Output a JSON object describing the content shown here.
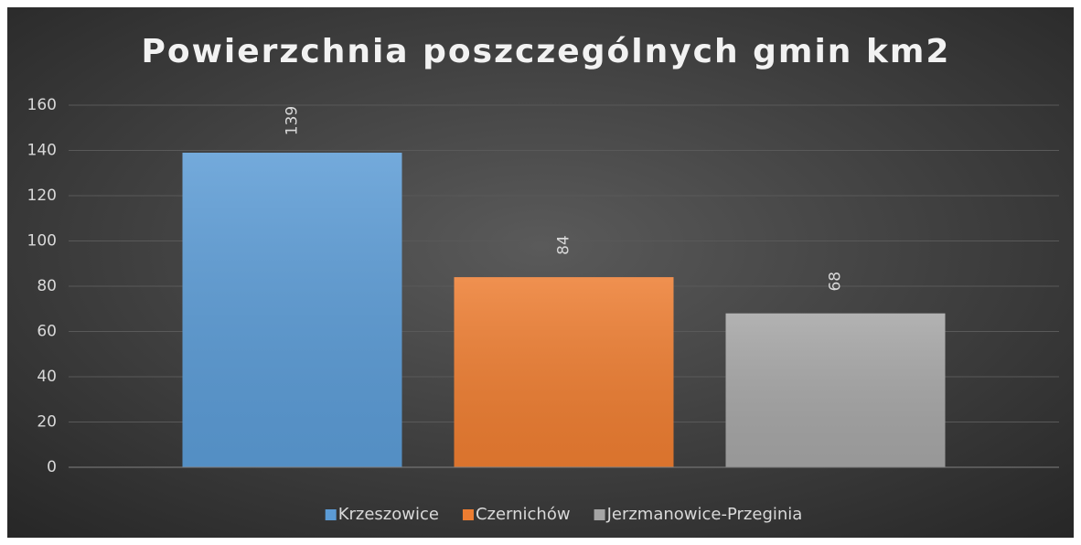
{
  "chart_data": {
    "type": "bar",
    "title": "Powierzchnia poszczególnych gmin km2",
    "categories": [
      null
    ],
    "series": [
      {
        "name": "Krzeszowice",
        "color": "#5b9bd5",
        "values": [
          139
        ]
      },
      {
        "name": "Czernichów",
        "color": "#ed7d31",
        "values": [
          84
        ]
      },
      {
        "name": "Jerzmanowice-Przeginia",
        "color": "#a5a5a5",
        "values": [
          68
        ]
      }
    ],
    "ylim": [
      0,
      160
    ],
    "yticks": [
      0,
      20,
      40,
      60,
      80,
      100,
      120,
      140,
      160
    ],
    "grid": true,
    "legend": "bottom"
  }
}
